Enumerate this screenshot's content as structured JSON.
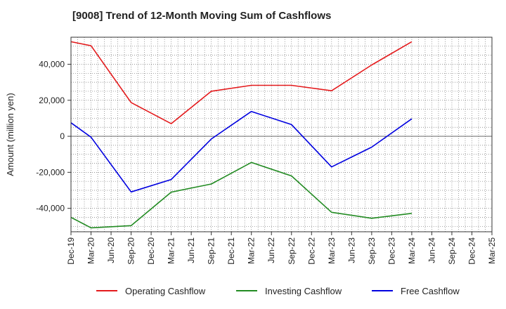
{
  "chart_data": {
    "type": "line",
    "title": "[9008]  Trend of 12-Month Moving Sum of Cashflows",
    "xlabel": "",
    "ylabel": "Amount (million yen)",
    "categories": [
      "Dec-19",
      "Mar-20",
      "Jun-20",
      "Sep-20",
      "Dec-20",
      "Mar-21",
      "Jun-21",
      "Sep-21",
      "Dec-21",
      "Mar-22",
      "Jun-22",
      "Sep-22",
      "Dec-22",
      "Mar-23",
      "Jun-23",
      "Sep-23",
      "Dec-23",
      "Mar-24",
      "Jun-24",
      "Sep-24",
      "Dec-24",
      "Mar-25"
    ],
    "ylim": [
      -53000,
      55000
    ],
    "yticks": [
      -40000,
      -20000,
      0,
      20000,
      40000
    ],
    "ytick_labels": [
      "-40,000",
      "-20,000",
      "0",
      "20,000",
      "40,000"
    ],
    "grid": true,
    "legend_position": "bottom",
    "series": [
      {
        "name": "Operating Cashflow",
        "color": "#e41a1c",
        "points": [
          [
            "Dec-19",
            52500
          ],
          [
            "Mar-20",
            50300
          ],
          [
            "Sep-20",
            18700
          ],
          [
            "Mar-21",
            7000
          ],
          [
            "Sep-21",
            25000
          ],
          [
            "Mar-22",
            28300
          ],
          [
            "Sep-22",
            28300
          ],
          [
            "Mar-23",
            25300
          ],
          [
            "Sep-23",
            39600
          ],
          [
            "Mar-24",
            52500
          ]
        ]
      },
      {
        "name": "Investing Cashflow",
        "color": "#228b22",
        "points": [
          [
            "Dec-19",
            -45000
          ],
          [
            "Mar-20",
            -50800
          ],
          [
            "Sep-20",
            -49600
          ],
          [
            "Mar-21",
            -31000
          ],
          [
            "Sep-21",
            -26500
          ],
          [
            "Mar-22",
            -14500
          ],
          [
            "Sep-22",
            -22000
          ],
          [
            "Mar-23",
            -42200
          ],
          [
            "Sep-23",
            -45500
          ],
          [
            "Mar-24",
            -42800
          ]
        ]
      },
      {
        "name": "Free Cashflow",
        "color": "#0000e0",
        "points": [
          [
            "Dec-19",
            7500
          ],
          [
            "Mar-20",
            -500
          ],
          [
            "Sep-20",
            -30900
          ],
          [
            "Mar-21",
            -24000
          ],
          [
            "Sep-21",
            -1500
          ],
          [
            "Mar-22",
            13800
          ],
          [
            "Sep-22",
            6500
          ],
          [
            "Mar-23",
            -17000
          ],
          [
            "Sep-23",
            -6000
          ],
          [
            "Mar-24",
            9700
          ]
        ]
      }
    ]
  }
}
